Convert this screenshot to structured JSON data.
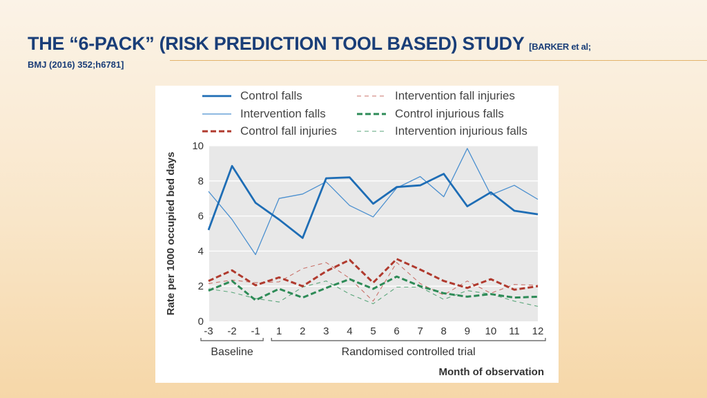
{
  "slide": {
    "title": "THE “6-PACK” (RISK PREDICTION TOOL BASED) STUDY",
    "citation_part1": "[BARKER et al;",
    "citation_part2": "BMJ (2016) 352;h6781]"
  },
  "chart_data": {
    "type": "line",
    "ylabel": "Rate per 1000 occupied bed days",
    "xlabel": "Month of observation",
    "ylim": [
      0,
      10
    ],
    "yticks": [
      "0",
      "2",
      "4",
      "6",
      "8",
      "10"
    ],
    "categories": [
      "-3",
      "-2",
      "-1",
      "1",
      "2",
      "3",
      "4",
      "5",
      "6",
      "7",
      "8",
      "9",
      "10",
      "11",
      "12"
    ],
    "period_labels": {
      "baseline": "Baseline",
      "trial": "Randomised controlled trial"
    },
    "grid": true,
    "legend_position": "top",
    "series": [
      {
        "name": "Control falls",
        "color": "#1e6db5",
        "style": "solid-thick",
        "values": [
          5.2,
          8.85,
          6.75,
          5.8,
          4.75,
          8.15,
          8.2,
          6.7,
          7.65,
          7.75,
          8.4,
          6.55,
          7.35,
          6.3,
          6.1
        ]
      },
      {
        "name": "Intervention falls",
        "color": "#4a8fcf",
        "style": "solid-thin",
        "values": [
          7.4,
          5.8,
          3.8,
          7.0,
          7.25,
          7.95,
          6.6,
          5.95,
          7.6,
          8.25,
          7.1,
          9.85,
          7.2,
          7.75,
          6.95
        ]
      },
      {
        "name": "Control fall injuries",
        "color": "#b03a2e",
        "style": "dashed-thick",
        "values": [
          2.3,
          2.9,
          2.05,
          2.5,
          2.0,
          2.85,
          3.5,
          2.2,
          3.55,
          2.95,
          2.3,
          1.9,
          2.4,
          1.8,
          2.0
        ]
      },
      {
        "name": "Intervention fall injuries",
        "color": "#c97068",
        "style": "dashed-thin",
        "values": [
          2.15,
          2.35,
          2.2,
          2.25,
          3.0,
          3.35,
          2.45,
          1.15,
          3.35,
          2.15,
          1.5,
          2.3,
          1.6,
          2.1,
          2.05
        ]
      },
      {
        "name": "Control injurious falls",
        "color": "#2e8b57",
        "style": "dashed-thick",
        "values": [
          1.75,
          2.3,
          1.2,
          1.85,
          1.35,
          1.9,
          2.4,
          1.85,
          2.55,
          2.0,
          1.6,
          1.4,
          1.55,
          1.35,
          1.4
        ]
      },
      {
        "name": "Intervention injurious falls",
        "color": "#5aa67a",
        "style": "dashed-thin",
        "values": [
          1.85,
          1.65,
          1.3,
          1.1,
          1.95,
          2.3,
          1.55,
          1.0,
          1.95,
          1.95,
          1.25,
          1.75,
          1.55,
          1.15,
          0.85
        ]
      }
    ]
  }
}
